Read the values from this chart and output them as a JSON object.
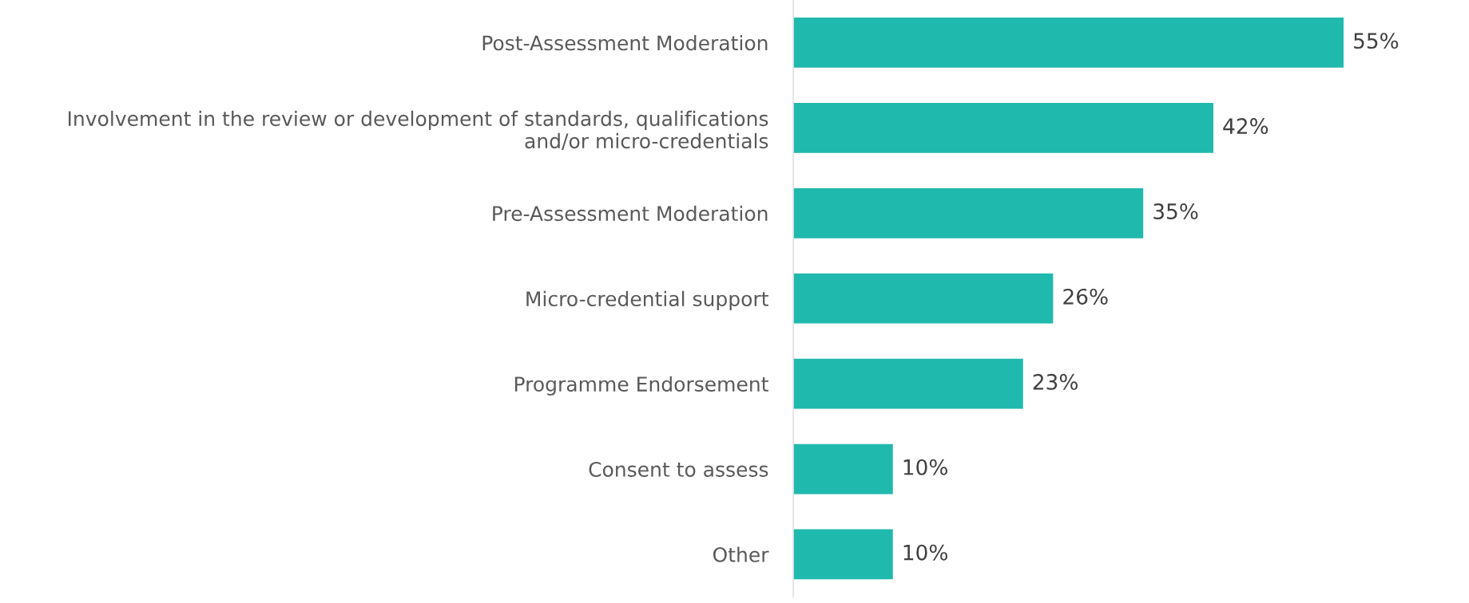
{
  "chart_data": {
    "type": "bar",
    "orientation": "horizontal",
    "categories": [
      "Post-Assessment Moderation",
      "Involvement in the review or development of standards, qualifications\nand/or micro-credentials",
      "Pre-Assessment Moderation",
      "Micro-credential support",
      "Programme Endorsement",
      "Consent to assess",
      "Other"
    ],
    "values": [
      55,
      42,
      35,
      26,
      23,
      10,
      10
    ],
    "value_labels": [
      "55%",
      "42%",
      "35%",
      "26%",
      "23%",
      "10%",
      "10%"
    ],
    "color": "#20b9ad",
    "grid": false,
    "legend": false
  }
}
